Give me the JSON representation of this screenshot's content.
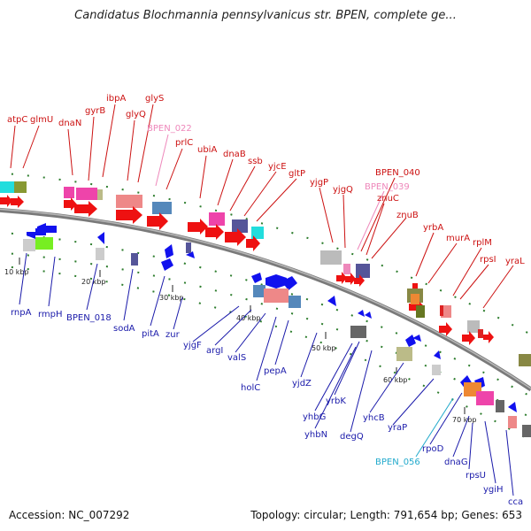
{
  "title": "Candidatus Blochmannia pennsylvanicus str. BPEN, complete ge...",
  "accession_text": "Accession: NC_007292",
  "summary_text": "Topology: circular; Length: 791,654 bp; Genes: 653",
  "colors": {
    "label_red": "#cc1111",
    "label_blue": "#1a1aaa",
    "label_pink": "#ee88bb",
    "label_cyan": "#22aacc",
    "backbone": "#808080",
    "tick_green": "#2d7d2d"
  },
  "scale_labels": [
    "10 kbp",
    "20 kbp",
    "30 kbp",
    "40 kbp",
    "50 kbp",
    "60 kbp",
    "70 kbp"
  ],
  "genes_top": [
    {
      "name": "atpC",
      "color": "red"
    },
    {
      "name": "glmU",
      "color": "red"
    },
    {
      "name": "dnaN",
      "color": "red"
    },
    {
      "name": "gyrB",
      "color": "red"
    },
    {
      "name": "ibpA",
      "color": "red"
    },
    {
      "name": "glyQ",
      "color": "red"
    },
    {
      "name": "glyS",
      "color": "red"
    },
    {
      "name": "BPEN_022",
      "color": "pink"
    },
    {
      "name": "prlC",
      "color": "red"
    },
    {
      "name": "ubiA",
      "color": "red"
    },
    {
      "name": "dnaB",
      "color": "red"
    },
    {
      "name": "ssb",
      "color": "red"
    },
    {
      "name": "yjcE",
      "color": "red"
    },
    {
      "name": "gltP",
      "color": "red"
    },
    {
      "name": "yjgP",
      "color": "red"
    },
    {
      "name": "yjgQ",
      "color": "red"
    },
    {
      "name": "BPEN_040",
      "color": "red"
    },
    {
      "name": "BPEN_039",
      "color": "pink"
    },
    {
      "name": "znuC",
      "color": "red"
    },
    {
      "name": "znuB",
      "color": "red"
    },
    {
      "name": "yrbA",
      "color": "red"
    },
    {
      "name": "murA",
      "color": "red"
    },
    {
      "name": "rplM",
      "color": "red"
    },
    {
      "name": "rpsI",
      "color": "red"
    },
    {
      "name": "yraL",
      "color": "red"
    }
  ],
  "genes_bottom": [
    {
      "name": "rnpA",
      "color": "blue"
    },
    {
      "name": "rmpH",
      "color": "blue"
    },
    {
      "name": "BPEN_018",
      "color": "blue"
    },
    {
      "name": "sodA",
      "color": "blue"
    },
    {
      "name": "pitA",
      "color": "blue"
    },
    {
      "name": "zur",
      "color": "blue"
    },
    {
      "name": "yjgF",
      "color": "blue"
    },
    {
      "name": "argI",
      "color": "blue"
    },
    {
      "name": "valS",
      "color": "blue"
    },
    {
      "name": "holC",
      "color": "blue"
    },
    {
      "name": "pepA",
      "color": "blue"
    },
    {
      "name": "yjdZ",
      "color": "blue"
    },
    {
      "name": "yrbK",
      "color": "blue"
    },
    {
      "name": "yhbG",
      "color": "blue"
    },
    {
      "name": "yhbN",
      "color": "blue"
    },
    {
      "name": "degQ",
      "color": "blue"
    },
    {
      "name": "yhcB",
      "color": "blue"
    },
    {
      "name": "yraP",
      "color": "blue"
    },
    {
      "name": "BPEN_056",
      "color": "cyan"
    },
    {
      "name": "rpoD",
      "color": "blue"
    },
    {
      "name": "dnaG",
      "color": "blue"
    },
    {
      "name": "rpsU",
      "color": "blue"
    },
    {
      "name": "ygiH",
      "color": "blue"
    },
    {
      "name": "cca",
      "color": "blue"
    }
  ]
}
